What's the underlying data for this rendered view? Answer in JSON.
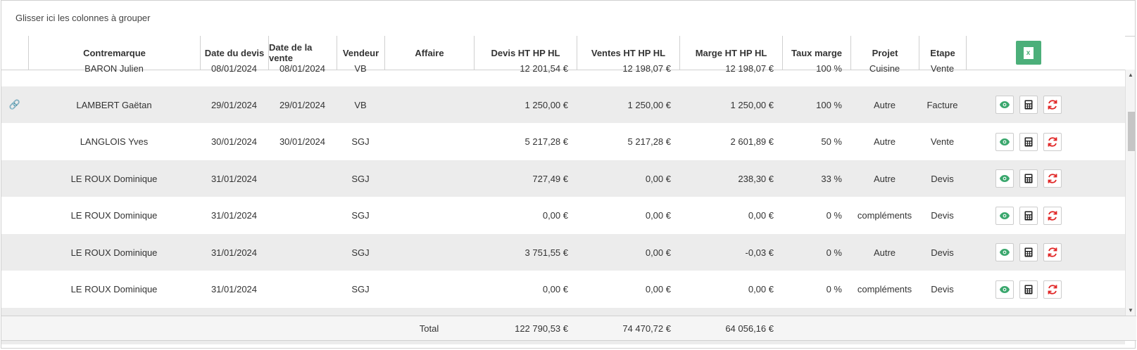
{
  "group_panel": {
    "text": "Glisser ici les colonnes à grouper"
  },
  "columns": {
    "contremarque": "Contremarque",
    "date_devis": "Date du devis",
    "date_vente": "Date de la vente",
    "vendeur": "Vendeur",
    "affaire": "Affaire",
    "devis_ht": "Devis HT HP HL",
    "ventes_ht": "Ventes HT HP HL",
    "marge_ht": "Marge HT HP HL",
    "taux_marge": "Taux marge",
    "projet": "Projet",
    "etape": "Etape"
  },
  "excel_button": {
    "icon": "excel-export-icon",
    "glyph": "x",
    "color": "#4caf7a"
  },
  "partial_row": {
    "contremarque": "BARON Julien",
    "date_devis": "08/01/2024",
    "date_vente": "08/01/2024",
    "vendeur": "VB",
    "devis_ht": "12 201,54 €",
    "ventes_ht": "12 198,07 €",
    "marge_ht": "12 198,07 €",
    "taux_marge": "100 %",
    "projet": "Cuisine",
    "etape": "Vente"
  },
  "rows": [
    {
      "link": "🔗",
      "contremarque": "LAMBERT Gaëtan",
      "date_devis": "29/01/2024",
      "date_vente": "29/01/2024",
      "vendeur": "VB",
      "affaire": "",
      "devis_ht": "1 250,00 €",
      "ventes_ht": "1 250,00 €",
      "marge_ht": "1 250,00 €",
      "taux_marge": "100 %",
      "projet": "Autre",
      "etape": "Facture"
    },
    {
      "link": "",
      "contremarque": "LANGLOIS Yves",
      "date_devis": "30/01/2024",
      "date_vente": "30/01/2024",
      "vendeur": "SGJ",
      "affaire": "",
      "devis_ht": "5 217,28 €",
      "ventes_ht": "5 217,28 €",
      "marge_ht": "2 601,89 €",
      "taux_marge": "50 %",
      "projet": "Autre",
      "etape": "Vente"
    },
    {
      "link": "",
      "contremarque": "LE ROUX Dominique",
      "date_devis": "31/01/2024",
      "date_vente": "",
      "vendeur": "SGJ",
      "affaire": "",
      "devis_ht": "727,49 €",
      "ventes_ht": "0,00 €",
      "marge_ht": "238,30 €",
      "taux_marge": "33 %",
      "projet": "Autre",
      "etape": "Devis"
    },
    {
      "link": "",
      "contremarque": "LE ROUX Dominique",
      "date_devis": "31/01/2024",
      "date_vente": "",
      "vendeur": "SGJ",
      "affaire": "",
      "devis_ht": "0,00 €",
      "ventes_ht": "0,00 €",
      "marge_ht": "0,00 €",
      "taux_marge": "0 %",
      "projet": "compléments",
      "etape": "Devis"
    },
    {
      "link": "",
      "contremarque": "LE ROUX Dominique",
      "date_devis": "31/01/2024",
      "date_vente": "",
      "vendeur": "SGJ",
      "affaire": "",
      "devis_ht": "3 751,55 €",
      "ventes_ht": "0,00 €",
      "marge_ht": "-0,03 €",
      "taux_marge": "0 %",
      "projet": "Autre",
      "etape": "Devis"
    },
    {
      "link": "",
      "contremarque": "LE ROUX Dominique",
      "date_devis": "31/01/2024",
      "date_vente": "",
      "vendeur": "SGJ",
      "affaire": "",
      "devis_ht": "0,00 €",
      "ventes_ht": "0,00 €",
      "marge_ht": "0,00 €",
      "taux_marge": "0 %",
      "projet": "compléments",
      "etape": "Devis"
    }
  ],
  "action_icons": {
    "view": "eye-icon",
    "calc": "calculator-icon",
    "refresh": "refresh-icon",
    "view_color": "#3aa76d",
    "refresh_color": "#e02424"
  },
  "footer": {
    "label": "Total",
    "devis_ht": "122 790,53 €",
    "ventes_ht": "74 470,72 €",
    "marge_ht": "64 056,16 €"
  }
}
